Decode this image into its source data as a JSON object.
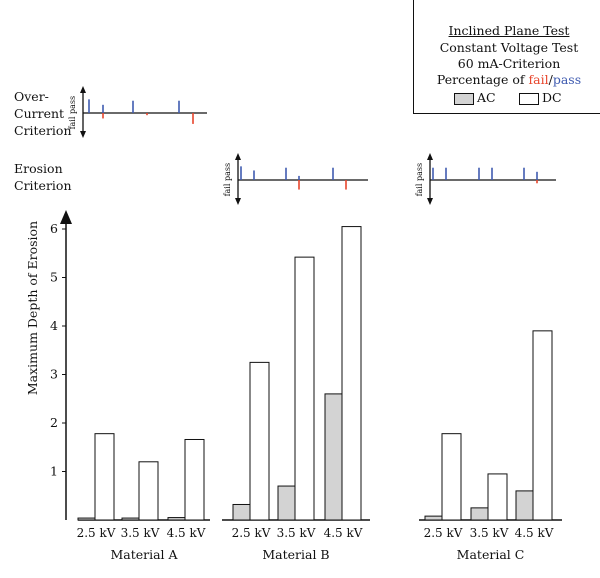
{
  "legend": {
    "title": "Inclined Plane Test",
    "line1": "Constant Voltage Test",
    "line2": "60 mA-Criterion",
    "percentage_prefix": "Percentage of ",
    "fail_word": "fail",
    "slash": "/",
    "pass_word": "pass",
    "ac_label": "AC",
    "dc_label": "DC"
  },
  "criteria": {
    "overcurrent_line1": "Over-",
    "overcurrent_line2": "Current",
    "overcurrent_line3": "Criterion",
    "erosion_line1": "Erosion",
    "erosion_line2": "Criterion",
    "pass_label": "pass",
    "fail_label": "fail"
  },
  "colors": {
    "ac_fill": "#d3d3d3",
    "dc_fill": "#ffffff",
    "pass": "#3f5bb0",
    "fail": "#e8452c",
    "axis": "#111111"
  },
  "chart_data": {
    "type": "bar",
    "ylabel": "Maximum Depth of Erosion",
    "ylim": [
      0,
      6.2
    ],
    "yticks": [
      1,
      2,
      3,
      4,
      5,
      6
    ],
    "voltages": [
      "2.5 kV",
      "3.5 kV",
      "4.5 kV"
    ],
    "series": [
      {
        "name": "AC",
        "color": "#d3d3d3"
      },
      {
        "name": "DC",
        "color": "#ffffff"
      }
    ],
    "groups": [
      {
        "name": "Material A",
        "ac": [
          0.04,
          0.04,
          0.05
        ],
        "dc": [
          1.78,
          1.2,
          1.66
        ],
        "overcurrent": {
          "ac_pass": [
            0.5,
            0.45,
            0.45
          ],
          "ac_fail": [
            0,
            0,
            0
          ],
          "dc_pass": [
            0.3,
            0,
            0
          ],
          "dc_fail": [
            0.2,
            0.08,
            0.4
          ]
        }
      },
      {
        "name": "Material B",
        "ac": [
          0.32,
          0.7,
          2.6
        ],
        "dc": [
          3.25,
          5.42,
          6.05
        ],
        "erosion": {
          "ac_pass": [
            0.5,
            0.45,
            0.45
          ],
          "ac_fail": [
            0,
            0,
            0
          ],
          "dc_pass": [
            0.35,
            0.15,
            0
          ],
          "dc_fail": [
            0,
            0.35,
            0.35
          ]
        }
      },
      {
        "name": "Material C",
        "ac": [
          0.08,
          0.25,
          0.6
        ],
        "dc": [
          1.78,
          0.95,
          3.9
        ],
        "erosion": {
          "ac_pass": [
            0.45,
            0.45,
            0.45
          ],
          "ac_fail": [
            0,
            0,
            0
          ],
          "dc_pass": [
            0.45,
            0.45,
            0.3
          ],
          "dc_fail": [
            0,
            0,
            0.12
          ]
        }
      }
    ]
  }
}
